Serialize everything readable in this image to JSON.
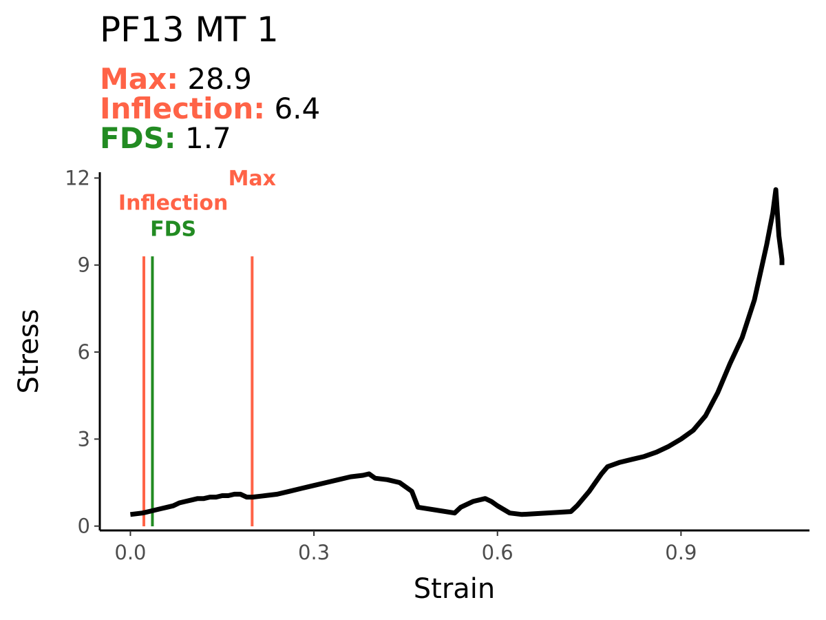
{
  "header": {
    "title": "PF13 MT 1",
    "stats": [
      {
        "label": "Max:",
        "value": "28.9",
        "color": "#FF6347"
      },
      {
        "label": "Inflection:",
        "value": "6.4",
        "color": "#FF6347"
      },
      {
        "label": "FDS:",
        "value": "1.7",
        "color": "#228B22"
      }
    ]
  },
  "chart_data": {
    "type": "line",
    "title": "PF13 MT 1",
    "xlabel": "Strain",
    "ylabel": "Stress",
    "xlim": [
      -0.05,
      1.11
    ],
    "ylim": [
      -0.15,
      12.2
    ],
    "xticks": [
      0.0,
      0.3,
      0.6,
      0.9
    ],
    "xtick_labels": [
      "0.0",
      "0.3",
      "0.6",
      "0.9"
    ],
    "yticks": [
      0,
      3,
      6,
      9,
      12
    ],
    "ytick_labels": [
      "0",
      "3",
      "6",
      "9",
      "12"
    ],
    "grid": false,
    "series": [
      {
        "color": "#000000",
        "x": [
          0.0,
          0.02,
          0.03,
          0.04,
          0.05,
          0.06,
          0.07,
          0.08,
          0.09,
          0.1,
          0.11,
          0.12,
          0.13,
          0.14,
          0.15,
          0.16,
          0.17,
          0.18,
          0.19,
          0.2,
          0.22,
          0.24,
          0.26,
          0.28,
          0.3,
          0.32,
          0.34,
          0.36,
          0.38,
          0.39,
          0.4,
          0.42,
          0.44,
          0.46,
          0.47,
          0.53,
          0.54,
          0.56,
          0.58,
          0.59,
          0.6,
          0.62,
          0.64,
          0.72,
          0.73,
          0.75,
          0.76,
          0.77,
          0.78,
          0.8,
          0.82,
          0.84,
          0.86,
          0.88,
          0.9,
          0.92,
          0.94,
          0.95,
          0.96,
          0.98,
          1.0,
          1.02,
          1.04,
          1.05,
          1.055,
          1.06,
          1.065,
          1.065
        ],
        "y": [
          0.4,
          0.45,
          0.5,
          0.55,
          0.6,
          0.65,
          0.7,
          0.8,
          0.85,
          0.9,
          0.95,
          0.95,
          1.0,
          1.0,
          1.05,
          1.05,
          1.1,
          1.1,
          1.0,
          1.0,
          1.05,
          1.1,
          1.2,
          1.3,
          1.4,
          1.5,
          1.6,
          1.7,
          1.75,
          1.8,
          1.65,
          1.6,
          1.5,
          1.2,
          0.65,
          0.45,
          0.65,
          0.85,
          0.95,
          0.85,
          0.7,
          0.45,
          0.4,
          0.5,
          0.7,
          1.2,
          1.5,
          1.8,
          2.05,
          2.2,
          2.3,
          2.4,
          2.55,
          2.75,
          3.0,
          3.3,
          3.8,
          4.2,
          4.6,
          5.6,
          6.5,
          7.8,
          9.7,
          10.8,
          11.6,
          10.0,
          9.2,
          9.0
        ]
      }
    ],
    "vlines": [
      {
        "name": "Inflection",
        "x": 0.022,
        "color": "#FF6347",
        "label_x": 0.07,
        "label_y": 10.9
      },
      {
        "name": "FDS",
        "x": 0.036,
        "color": "#228B22",
        "label_x": 0.07,
        "label_y": 10.0
      },
      {
        "name": "Max",
        "x": 0.199,
        "color": "#FF6347",
        "label_x": 0.199,
        "label_y": 11.75
      }
    ],
    "vline_top": 9.3
  }
}
